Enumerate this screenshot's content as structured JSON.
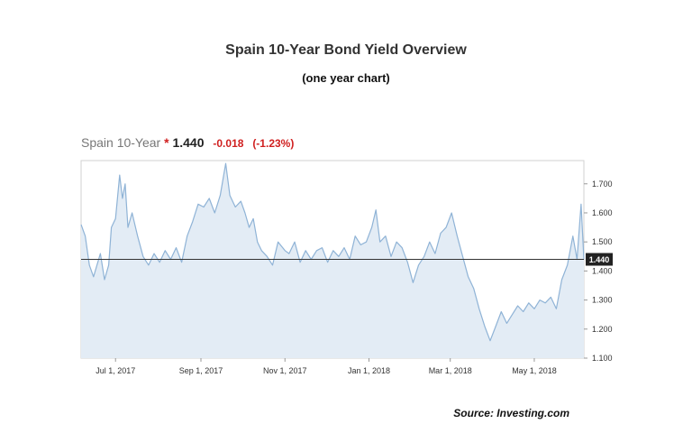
{
  "header": {
    "title": "Spain 10-Year Bond Yield Overview",
    "subtitle": "(one year chart)"
  },
  "quote": {
    "name": "Spain 10-Year",
    "star": "*",
    "price": "1.440",
    "change": "-0.018",
    "change_pct": "(-1.23%)"
  },
  "footer": {
    "source": "Source: Investing.com"
  },
  "colors": {
    "line": "#8fb3d6",
    "fill": "#e3ecf5",
    "last_line": "#333333",
    "negative": "#d02020",
    "marker_bg": "#222222"
  },
  "chart_data": {
    "type": "area",
    "title": "Spain 10-Year Bond Yield Overview",
    "subtitle": "(one year chart)",
    "xlabel": "",
    "ylabel": "",
    "ylim": [
      1.1,
      1.78
    ],
    "yticks": [
      1.1,
      1.2,
      1.3,
      1.4,
      1.5,
      1.6,
      1.7
    ],
    "ytick_labels": [
      "1.100",
      "1.200",
      "1.300",
      "1.400",
      "1.500",
      "1.600",
      "1.700"
    ],
    "xlim": [
      "2017-06-06",
      "2018-06-06"
    ],
    "xticks": [
      "2017-07-01",
      "2017-09-01",
      "2017-11-01",
      "2018-01-01",
      "2018-03-01",
      "2018-05-01"
    ],
    "xtick_labels": [
      "Jul 1, 2017",
      "Sep 1, 2017",
      "Nov 1, 2017",
      "Jan 1, 2018",
      "Mar 1, 2018",
      "May 1, 2018"
    ],
    "last_value": 1.44,
    "last_value_label": "1.440",
    "grid": false,
    "series": [
      {
        "x": [
          "2017-06-06",
          "2017-06-09",
          "2017-06-12",
          "2017-06-15",
          "2017-06-20",
          "2017-06-23",
          "2017-06-26",
          "2017-06-28",
          "2017-07-01",
          "2017-07-04",
          "2017-07-06",
          "2017-07-08",
          "2017-07-10",
          "2017-07-13",
          "2017-07-17",
          "2017-07-21",
          "2017-07-25",
          "2017-07-29",
          "2017-08-02",
          "2017-08-06",
          "2017-08-10",
          "2017-08-14",
          "2017-08-18",
          "2017-08-22",
          "2017-08-26",
          "2017-08-30",
          "2017-09-03",
          "2017-09-07",
          "2017-09-11",
          "2017-09-15",
          "2017-09-19",
          "2017-09-22",
          "2017-09-26",
          "2017-09-30",
          "2017-10-03",
          "2017-10-06",
          "2017-10-09",
          "2017-10-12",
          "2017-10-15",
          "2017-10-19",
          "2017-10-23",
          "2017-10-27",
          "2017-11-01",
          "2017-11-04",
          "2017-11-08",
          "2017-11-12",
          "2017-11-16",
          "2017-11-20",
          "2017-11-24",
          "2017-11-28",
          "2017-12-02",
          "2017-12-06",
          "2017-12-10",
          "2017-12-14",
          "2017-12-18",
          "2017-12-22",
          "2017-12-26",
          "2017-12-30",
          "2018-01-03",
          "2018-01-06",
          "2018-01-09",
          "2018-01-13",
          "2018-01-17",
          "2018-01-21",
          "2018-01-25",
          "2018-01-29",
          "2018-02-02",
          "2018-02-06",
          "2018-02-10",
          "2018-02-14",
          "2018-02-18",
          "2018-02-22",
          "2018-02-26",
          "2018-03-02",
          "2018-03-06",
          "2018-03-10",
          "2018-03-14",
          "2018-03-18",
          "2018-03-22",
          "2018-03-26",
          "2018-03-30",
          "2018-04-03",
          "2018-04-07",
          "2018-04-11",
          "2018-04-15",
          "2018-04-19",
          "2018-04-23",
          "2018-04-27",
          "2018-05-01",
          "2018-05-05",
          "2018-05-09",
          "2018-05-13",
          "2018-05-17",
          "2018-05-21",
          "2018-05-25",
          "2018-05-29",
          "2018-06-01",
          "2018-06-04",
          "2018-06-06"
        ],
        "values": [
          1.56,
          1.52,
          1.42,
          1.38,
          1.46,
          1.37,
          1.42,
          1.55,
          1.58,
          1.73,
          1.65,
          1.7,
          1.55,
          1.6,
          1.52,
          1.45,
          1.42,
          1.46,
          1.43,
          1.47,
          1.44,
          1.48,
          1.43,
          1.52,
          1.57,
          1.63,
          1.62,
          1.65,
          1.6,
          1.66,
          1.77,
          1.66,
          1.62,
          1.64,
          1.6,
          1.55,
          1.58,
          1.5,
          1.47,
          1.45,
          1.42,
          1.5,
          1.47,
          1.46,
          1.5,
          1.43,
          1.47,
          1.44,
          1.47,
          1.48,
          1.43,
          1.47,
          1.45,
          1.48,
          1.44,
          1.52,
          1.49,
          1.5,
          1.55,
          1.61,
          1.5,
          1.52,
          1.45,
          1.5,
          1.48,
          1.43,
          1.36,
          1.42,
          1.45,
          1.5,
          1.46,
          1.53,
          1.55,
          1.6,
          1.52,
          1.45,
          1.38,
          1.34,
          1.27,
          1.21,
          1.16,
          1.21,
          1.26,
          1.22,
          1.25,
          1.28,
          1.26,
          1.29,
          1.27,
          1.3,
          1.29,
          1.31,
          1.27,
          1.37,
          1.42,
          1.52,
          1.44,
          1.63,
          1.44
        ]
      }
    ]
  }
}
